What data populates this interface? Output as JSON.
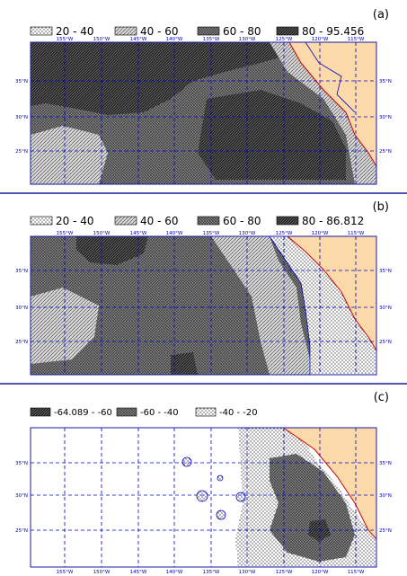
{
  "panels": [
    {
      "label": "(a)",
      "legend": [
        {
          "label": "20 - 40",
          "pattern": "dots"
        },
        {
          "label": "40 - 60",
          "pattern": "light"
        },
        {
          "label": "60 - 80",
          "pattern": "medium"
        },
        {
          "label": "80 - 95.456",
          "pattern": "dark"
        }
      ],
      "x_ticks": [
        "155°W",
        "150°W",
        "145°W",
        "140°W",
        "135°W",
        "130°W",
        "125°W",
        "120°W",
        "115°W"
      ],
      "y_ticks": [
        "35°N",
        "30°N",
        "25°N"
      ]
    },
    {
      "label": "(b)",
      "legend": [
        {
          "label": "20 - 40",
          "pattern": "dots"
        },
        {
          "label": "40 - 60",
          "pattern": "light"
        },
        {
          "label": "60 - 80",
          "pattern": "medium"
        },
        {
          "label": "80 - 86.812",
          "pattern": "dark"
        }
      ],
      "x_ticks": [
        "155°W",
        "150°W",
        "145°W",
        "140°W",
        "135°W",
        "130°W",
        "125°W",
        "120°W",
        "115°W"
      ],
      "y_ticks": [
        "35°N",
        "30°N",
        "25°N"
      ]
    },
    {
      "label": "(c)",
      "legend": [
        {
          "label": "-64.089 - -60",
          "pattern": "dark"
        },
        {
          "label": "-60 - -40",
          "pattern": "medium"
        },
        {
          "label": "-40 - -20",
          "pattern": "dots"
        }
      ],
      "x_ticks": [
        "155°W",
        "150°W",
        "145°W",
        "140°W",
        "135°W",
        "130°W",
        "125°W",
        "120°W",
        "115°W"
      ],
      "y_ticks": [
        "35°N",
        "30°N",
        "25°N"
      ]
    }
  ],
  "colors": {
    "land": "#fcd9a8",
    "coast": "#cc0000",
    "grid": "#0000cc",
    "frame": "#1a1aa8"
  }
}
